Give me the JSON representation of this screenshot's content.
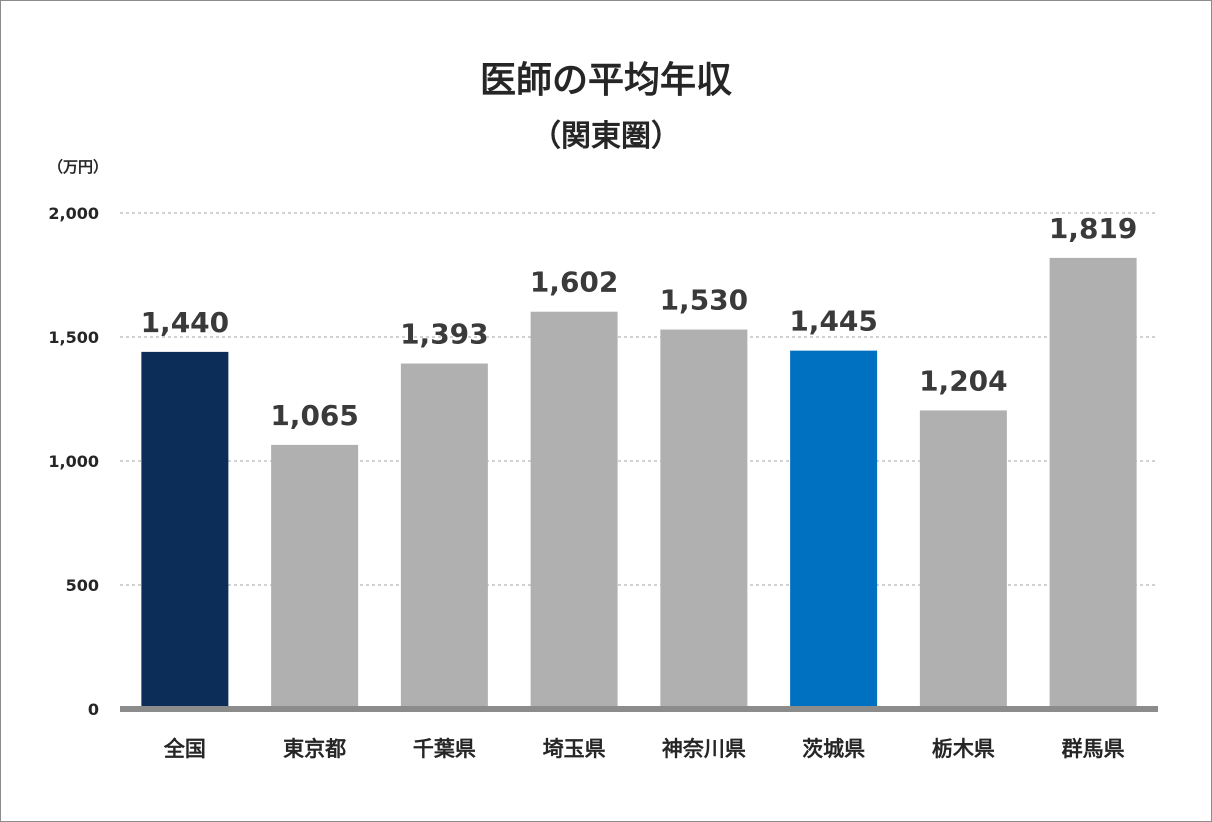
{
  "chart_data": {
    "type": "bar",
    "title": "医師の平均年収",
    "subtitle": "（関東圏）",
    "ylabel": "（万円）",
    "categories": [
      "全国",
      "東京都",
      "千葉県",
      "埼玉県",
      "神奈川県",
      "茨城県",
      "栃木県",
      "群馬県"
    ],
    "values": [
      1440,
      1065,
      1393,
      1602,
      1530,
      1445,
      1204,
      1819
    ],
    "value_labels": [
      "1,440",
      "1,065",
      "1,393",
      "1,602",
      "1,530",
      "1,445",
      "1,204",
      "1,819"
    ],
    "ylim": [
      0,
      2000
    ],
    "yticks": [
      0,
      500,
      1000,
      1500,
      2000
    ],
    "ytick_labels": [
      "0",
      "500",
      "1,000",
      "1,500",
      "2,000"
    ],
    "grid": true,
    "colors": [
      "#0b2d57",
      "#b0b0b0",
      "#b0b0b0",
      "#b0b0b0",
      "#b0b0b0",
      "#0070c0",
      "#b0b0b0",
      "#b0b0b0"
    ],
    "grid_color": "#a6a6a6",
    "axis_color": "#8c8c8c"
  }
}
